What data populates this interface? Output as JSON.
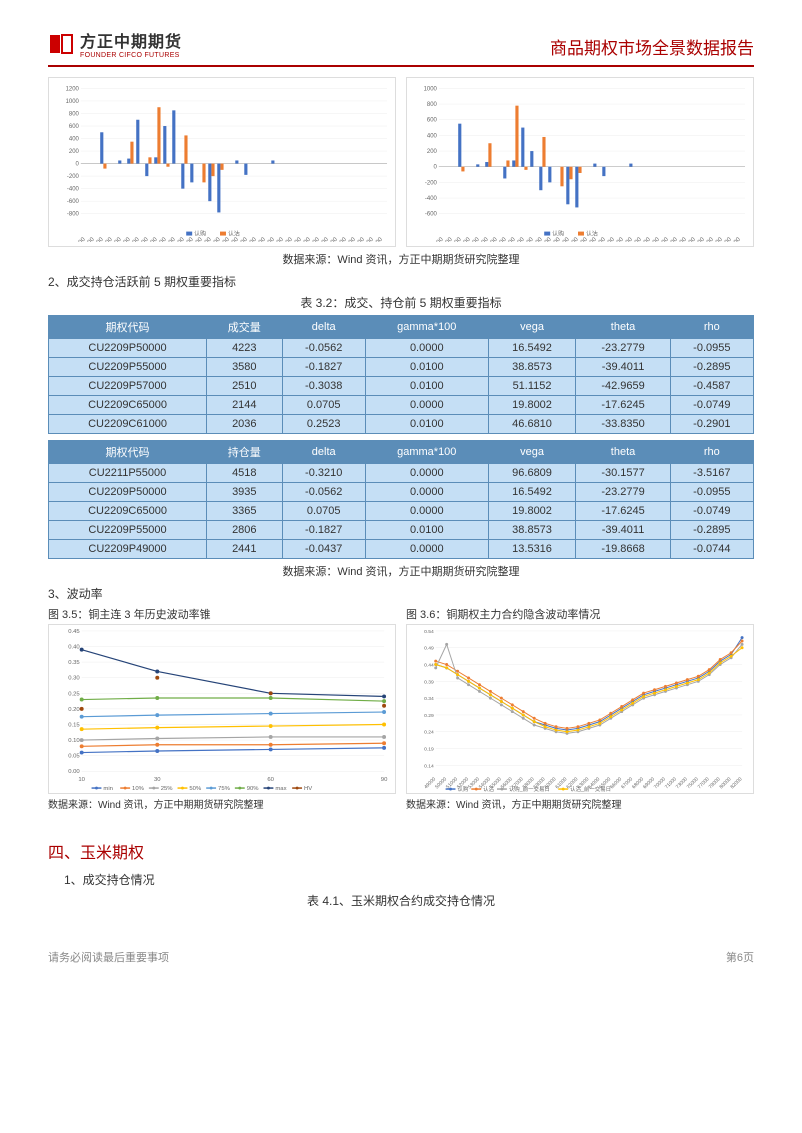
{
  "header": {
    "logo_cn": "方正中期期货",
    "logo_en": "FOUNDER CIFCO FUTURES",
    "report_title": "商品期权市场全景数据报告"
  },
  "top_charts_caption": "数据来源：Wind 资讯，方正中期期货研究院整理",
  "section2": {
    "label": "2、成交持仓活跃前 5 期权重要指标",
    "table_title": "表 3.2：成交、持仓前 5 期权重要指标",
    "source": "数据来源：Wind 资讯，方正中期期货研究院整理"
  },
  "table_a": {
    "headers": [
      "期权代码",
      "成交量",
      "delta",
      "gamma*100",
      "vega",
      "theta",
      "rho"
    ],
    "rows": [
      [
        "CU2209P50000",
        "4223",
        "-0.0562",
        "0.0000",
        "16.5492",
        "-23.2779",
        "-0.0955"
      ],
      [
        "CU2209P55000",
        "3580",
        "-0.1827",
        "0.0100",
        "38.8573",
        "-39.4011",
        "-0.2895"
      ],
      [
        "CU2209P57000",
        "2510",
        "-0.3038",
        "0.0100",
        "51.1152",
        "-42.9659",
        "-0.4587"
      ],
      [
        "CU2209C65000",
        "2144",
        "0.0705",
        "0.0000",
        "19.8002",
        "-17.6245",
        "-0.0749"
      ],
      [
        "CU2209C61000",
        "2036",
        "0.2523",
        "0.0100",
        "46.6810",
        "-33.8350",
        "-0.2901"
      ]
    ]
  },
  "table_b": {
    "headers": [
      "期权代码",
      "持仓量",
      "delta",
      "gamma*100",
      "vega",
      "theta",
      "rho"
    ],
    "rows": [
      [
        "CU2211P55000",
        "4518",
        "-0.3210",
        "0.0000",
        "96.6809",
        "-30.1577",
        "-3.5167"
      ],
      [
        "CU2209P50000",
        "3935",
        "-0.0562",
        "0.0000",
        "16.5492",
        "-23.2779",
        "-0.0955"
      ],
      [
        "CU2209C65000",
        "3365",
        "0.0705",
        "0.0000",
        "19.8002",
        "-17.6245",
        "-0.0749"
      ],
      [
        "CU2209P55000",
        "2806",
        "-0.1827",
        "0.0100",
        "38.8573",
        "-39.4011",
        "-0.2895"
      ],
      [
        "CU2209P49000",
        "2441",
        "-0.0437",
        "0.0000",
        "13.5316",
        "-19.8668",
        "-0.0744"
      ]
    ]
  },
  "section3": {
    "label": "3、波动率",
    "chart_left_title": "图 3.5：铜主连 3 年历史波动率锥",
    "chart_right_title": "图 3.6：铜期权主力合约隐含波动率情况",
    "source_left": "数据来源：Wind 资讯，方正中期期货研究院整理",
    "source_right": "数据来源：Wind 资讯，方正中期期货研究院整理"
  },
  "section4": {
    "head": "四、玉米期权",
    "sub": "1、成交持仓情况",
    "table_title": "表 4.1、玉米期权合约成交持仓情况"
  },
  "footer": {
    "left": "请务必阅读最后重要事项",
    "right": "第6页"
  },
  "bar_chart_left": {
    "ylim": [
      -800,
      1200
    ],
    "ytick_step": 200,
    "x_labels": [
      "49000",
      "50000",
      "51000",
      "52000",
      "53000",
      "54000",
      "55000",
      "56000",
      "57000",
      "58000",
      "59000",
      "60000",
      "61000",
      "62000",
      "63000",
      "64000",
      "65000",
      "66000",
      "67000",
      "68000",
      "69000",
      "70000",
      "71000",
      "72000",
      "73000",
      "74000",
      "75000",
      "76000",
      "77000",
      "78000",
      "79000",
      "80000",
      "81000",
      "82000"
    ],
    "series": [
      {
        "name": "认购",
        "color": "#4472c4",
        "values": [
          0,
          0,
          500,
          0,
          50,
          80,
          700,
          -200,
          100,
          600,
          850,
          -400,
          -300,
          0,
          -600,
          -780,
          0,
          50,
          -180,
          0,
          0,
          50,
          0,
          0,
          0,
          0,
          0,
          0,
          0,
          0,
          0,
          0,
          0,
          0
        ]
      },
      {
        "name": "认沽",
        "color": "#ed7d31",
        "values": [
          0,
          0,
          -80,
          0,
          0,
          350,
          0,
          100,
          900,
          -50,
          0,
          450,
          0,
          -300,
          -200,
          -100,
          0,
          0,
          0,
          0,
          0,
          0,
          0,
          0,
          0,
          0,
          0,
          0,
          0,
          0,
          0,
          0,
          0,
          0
        ]
      }
    ],
    "legend": [
      "认购",
      "认沽"
    ]
  },
  "bar_chart_right": {
    "ylim": [
      -600,
      1000
    ],
    "ytick_step": 200,
    "x_labels": [
      "49000",
      "50000",
      "51000",
      "52000",
      "53000",
      "54000",
      "55000",
      "56000",
      "57000",
      "58000",
      "59000",
      "60000",
      "61000",
      "62000",
      "63000",
      "64000",
      "65000",
      "66000",
      "67000",
      "68000",
      "69000",
      "70000",
      "71000",
      "72000",
      "73000",
      "74000",
      "75000",
      "76000",
      "77000",
      "78000",
      "79000",
      "80000",
      "81000",
      "82000"
    ],
    "series": [
      {
        "name": "认购",
        "color": "#4472c4",
        "values": [
          0,
          0,
          550,
          0,
          30,
          60,
          0,
          -150,
          80,
          500,
          200,
          -300,
          -200,
          0,
          -480,
          -520,
          0,
          40,
          -120,
          0,
          0,
          40,
          0,
          0,
          0,
          0,
          0,
          0,
          0,
          0,
          0,
          0,
          0,
          0
        ]
      },
      {
        "name": "认沽",
        "color": "#ed7d31",
        "values": [
          0,
          0,
          -60,
          0,
          0,
          300,
          0,
          80,
          780,
          -40,
          0,
          380,
          0,
          -250,
          -160,
          -80,
          0,
          0,
          0,
          0,
          0,
          0,
          0,
          0,
          0,
          0,
          0,
          0,
          0,
          0,
          0,
          0,
          0,
          0
        ]
      }
    ],
    "legend": [
      "认购",
      "认沽"
    ]
  },
  "vol_cone": {
    "ylim": [
      0,
      0.45
    ],
    "ytick_step": 0.05,
    "x": [
      10,
      30,
      60,
      90
    ],
    "series": [
      {
        "name": "min",
        "color": "#4472c4",
        "y": [
          0.06,
          0.065,
          0.07,
          0.075
        ]
      },
      {
        "name": "10%",
        "color": "#ed7d31",
        "y": [
          0.08,
          0.085,
          0.085,
          0.09
        ]
      },
      {
        "name": "25%",
        "color": "#a5a5a5",
        "y": [
          0.1,
          0.105,
          0.11,
          0.11
        ]
      },
      {
        "name": "50%",
        "color": "#ffc000",
        "y": [
          0.135,
          0.14,
          0.145,
          0.15
        ]
      },
      {
        "name": "75%",
        "color": "#5b9bd5",
        "y": [
          0.175,
          0.18,
          0.185,
          0.19
        ]
      },
      {
        "name": "90%",
        "color": "#70ad47",
        "y": [
          0.23,
          0.235,
          0.235,
          0.225
        ]
      },
      {
        "name": "max",
        "color": "#264478",
        "y": [
          0.39,
          0.32,
          0.25,
          0.24
        ]
      },
      {
        "name": "HV",
        "color": "#9e480e",
        "y": [
          0.2,
          0.3,
          0.25,
          0.21
        ],
        "dots_only": true
      }
    ]
  },
  "iv_chart": {
    "ylim": [
      0.14,
      0.54
    ],
    "ytick_step": 0.05,
    "x_labels": [
      "49000",
      "50000",
      "51000",
      "52000",
      "53000",
      "54000",
      "55000",
      "56000",
      "57000",
      "58000",
      "59000",
      "60000",
      "61000",
      "62000",
      "63000",
      "64000",
      "65000",
      "66000",
      "67000",
      "68000",
      "69000",
      "70000",
      "71000",
      "73000",
      "75000",
      "77000",
      "79000",
      "80000",
      "82000"
    ],
    "series": [
      {
        "name": "认购",
        "color": "#4472c4",
        "y": [
          0.44,
          0.43,
          0.41,
          0.39,
          0.37,
          0.35,
          0.33,
          0.31,
          0.29,
          0.27,
          0.26,
          0.25,
          0.245,
          0.25,
          0.26,
          0.27,
          0.29,
          0.31,
          0.33,
          0.35,
          0.36,
          0.37,
          0.38,
          0.39,
          0.4,
          0.42,
          0.45,
          0.47,
          0.52
        ]
      },
      {
        "name": "认沽",
        "color": "#ed7d31",
        "y": [
          0.45,
          0.44,
          0.42,
          0.4,
          0.38,
          0.36,
          0.34,
          0.32,
          0.3,
          0.28,
          0.265,
          0.255,
          0.25,
          0.255,
          0.265,
          0.275,
          0.295,
          0.315,
          0.335,
          0.355,
          0.365,
          0.375,
          0.385,
          0.395,
          0.405,
          0.425,
          0.455,
          0.475,
          0.51
        ]
      },
      {
        "name": "认购_前一交易日",
        "color": "#a5a5a5",
        "y": [
          0.43,
          0.5,
          0.4,
          0.38,
          0.36,
          0.34,
          0.32,
          0.3,
          0.28,
          0.26,
          0.25,
          0.24,
          0.235,
          0.24,
          0.25,
          0.26,
          0.28,
          0.3,
          0.32,
          0.34,
          0.35,
          0.36,
          0.37,
          0.38,
          0.39,
          0.41,
          0.44,
          0.46,
          0.5
        ]
      },
      {
        "name": "认沽_前一交易日",
        "color": "#ffc000",
        "y": [
          0.44,
          0.43,
          0.41,
          0.39,
          0.37,
          0.35,
          0.33,
          0.31,
          0.29,
          0.27,
          0.255,
          0.245,
          0.24,
          0.245,
          0.255,
          0.265,
          0.285,
          0.305,
          0.325,
          0.345,
          0.355,
          0.365,
          0.375,
          0.385,
          0.395,
          0.415,
          0.445,
          0.465,
          0.49
        ]
      }
    ]
  }
}
